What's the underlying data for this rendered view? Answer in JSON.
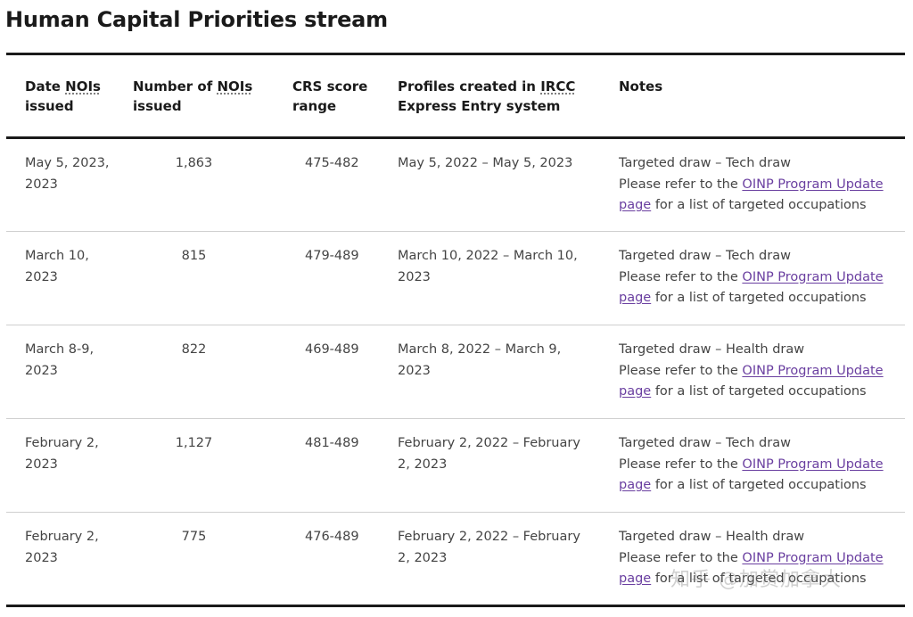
{
  "page": {
    "title": "Human Capital Priorities stream"
  },
  "table": {
    "headers": {
      "date_prefix": "Date ",
      "date_abbr": "NOIs",
      "date_suffix": " issued",
      "number_prefix": "Number of ",
      "number_abbr": "NOIs",
      "number_suffix": " issued",
      "crs": "CRS score range",
      "profiles_prefix": "Profiles created in ",
      "profiles_abbr": "IRCC",
      "profiles_suffix": " Express Entry system",
      "notes": "Notes"
    },
    "notes_common": {
      "prefix": "Please refer to the ",
      "link": "OINP Program Update page",
      "suffix": " for a list of targeted occupations"
    },
    "rows": [
      {
        "date": "May 5, 2023, 2023",
        "number": "1,863",
        "crs": "475-482",
        "profiles": "May 5, 2022 – May 5, 2023",
        "note_title": "Targeted draw – Tech draw"
      },
      {
        "date": "March 10, 2023",
        "number": "815",
        "crs": "479-489",
        "profiles": "March 10, 2022 – March 10, 2023",
        "note_title": "Targeted draw – Tech draw"
      },
      {
        "date": "March 8-9, 2023",
        "number": "822",
        "crs": "469-489",
        "profiles": "March 8, 2022 – March 9, 2023",
        "note_title": "Targeted draw – Health draw"
      },
      {
        "date": "February 2, 2023",
        "number": "1,127",
        "crs": "481-489",
        "profiles": "February 2, 2022 – February 2, 2023",
        "note_title": "Targeted draw – Tech draw"
      },
      {
        "date": "February 2, 2023",
        "number": "775",
        "crs": "476-489",
        "profiles": "February 2, 2022 – February 2, 2023",
        "note_title": "Targeted draw – Health draw"
      }
    ]
  },
  "watermark": "知乎 @加赏加拿大"
}
